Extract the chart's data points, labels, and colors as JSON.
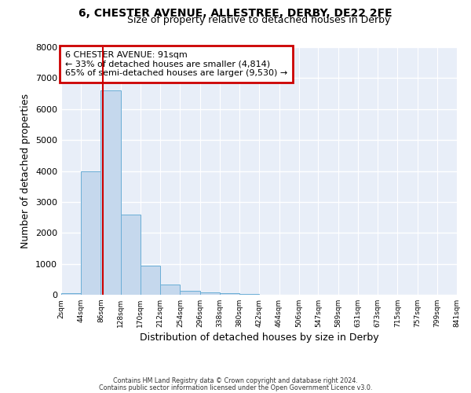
{
  "title": "6, CHESTER AVENUE, ALLESTREE, DERBY, DE22 2FE",
  "subtitle": "Size of property relative to detached houses in Derby",
  "xlabel": "Distribution of detached houses by size in Derby",
  "ylabel": "Number of detached properties",
  "bar_color": "#c5d8ed",
  "bar_edge_color": "#6aaed6",
  "background_color": "#ffffff",
  "plot_bg_color": "#e8eef8",
  "grid_color": "#ffffff",
  "bin_edges": [
    2,
    44,
    86,
    128,
    170,
    212,
    254,
    296,
    338,
    380,
    422,
    464,
    506,
    547,
    589,
    631,
    673,
    715,
    757,
    799,
    841
  ],
  "bar_heights": [
    50,
    4000,
    6600,
    2600,
    950,
    320,
    120,
    80,
    50,
    30,
    0,
    0,
    0,
    0,
    0,
    0,
    0,
    0,
    0,
    0
  ],
  "tick_labels": [
    "2sqm",
    "44sqm",
    "86sqm",
    "128sqm",
    "170sqm",
    "212sqm",
    "254sqm",
    "296sqm",
    "338sqm",
    "380sqm",
    "422sqm",
    "464sqm",
    "506sqm",
    "547sqm",
    "589sqm",
    "631sqm",
    "673sqm",
    "715sqm",
    "757sqm",
    "799sqm",
    "841sqm"
  ],
  "property_size": 91,
  "property_line_color": "#cc0000",
  "annotation_box_color": "#ffffff",
  "annotation_box_edge": "#cc0000",
  "annotation_title": "6 CHESTER AVENUE: 91sqm",
  "annotation_line1": "← 33% of detached houses are smaller (4,814)",
  "annotation_line2": "65% of semi-detached houses are larger (9,530) →",
  "ylim": [
    0,
    8000
  ],
  "yticks": [
    0,
    1000,
    2000,
    3000,
    4000,
    5000,
    6000,
    7000,
    8000
  ],
  "footer1": "Contains HM Land Registry data © Crown copyright and database right 2024.",
  "footer2": "Contains public sector information licensed under the Open Government Licence v3.0."
}
